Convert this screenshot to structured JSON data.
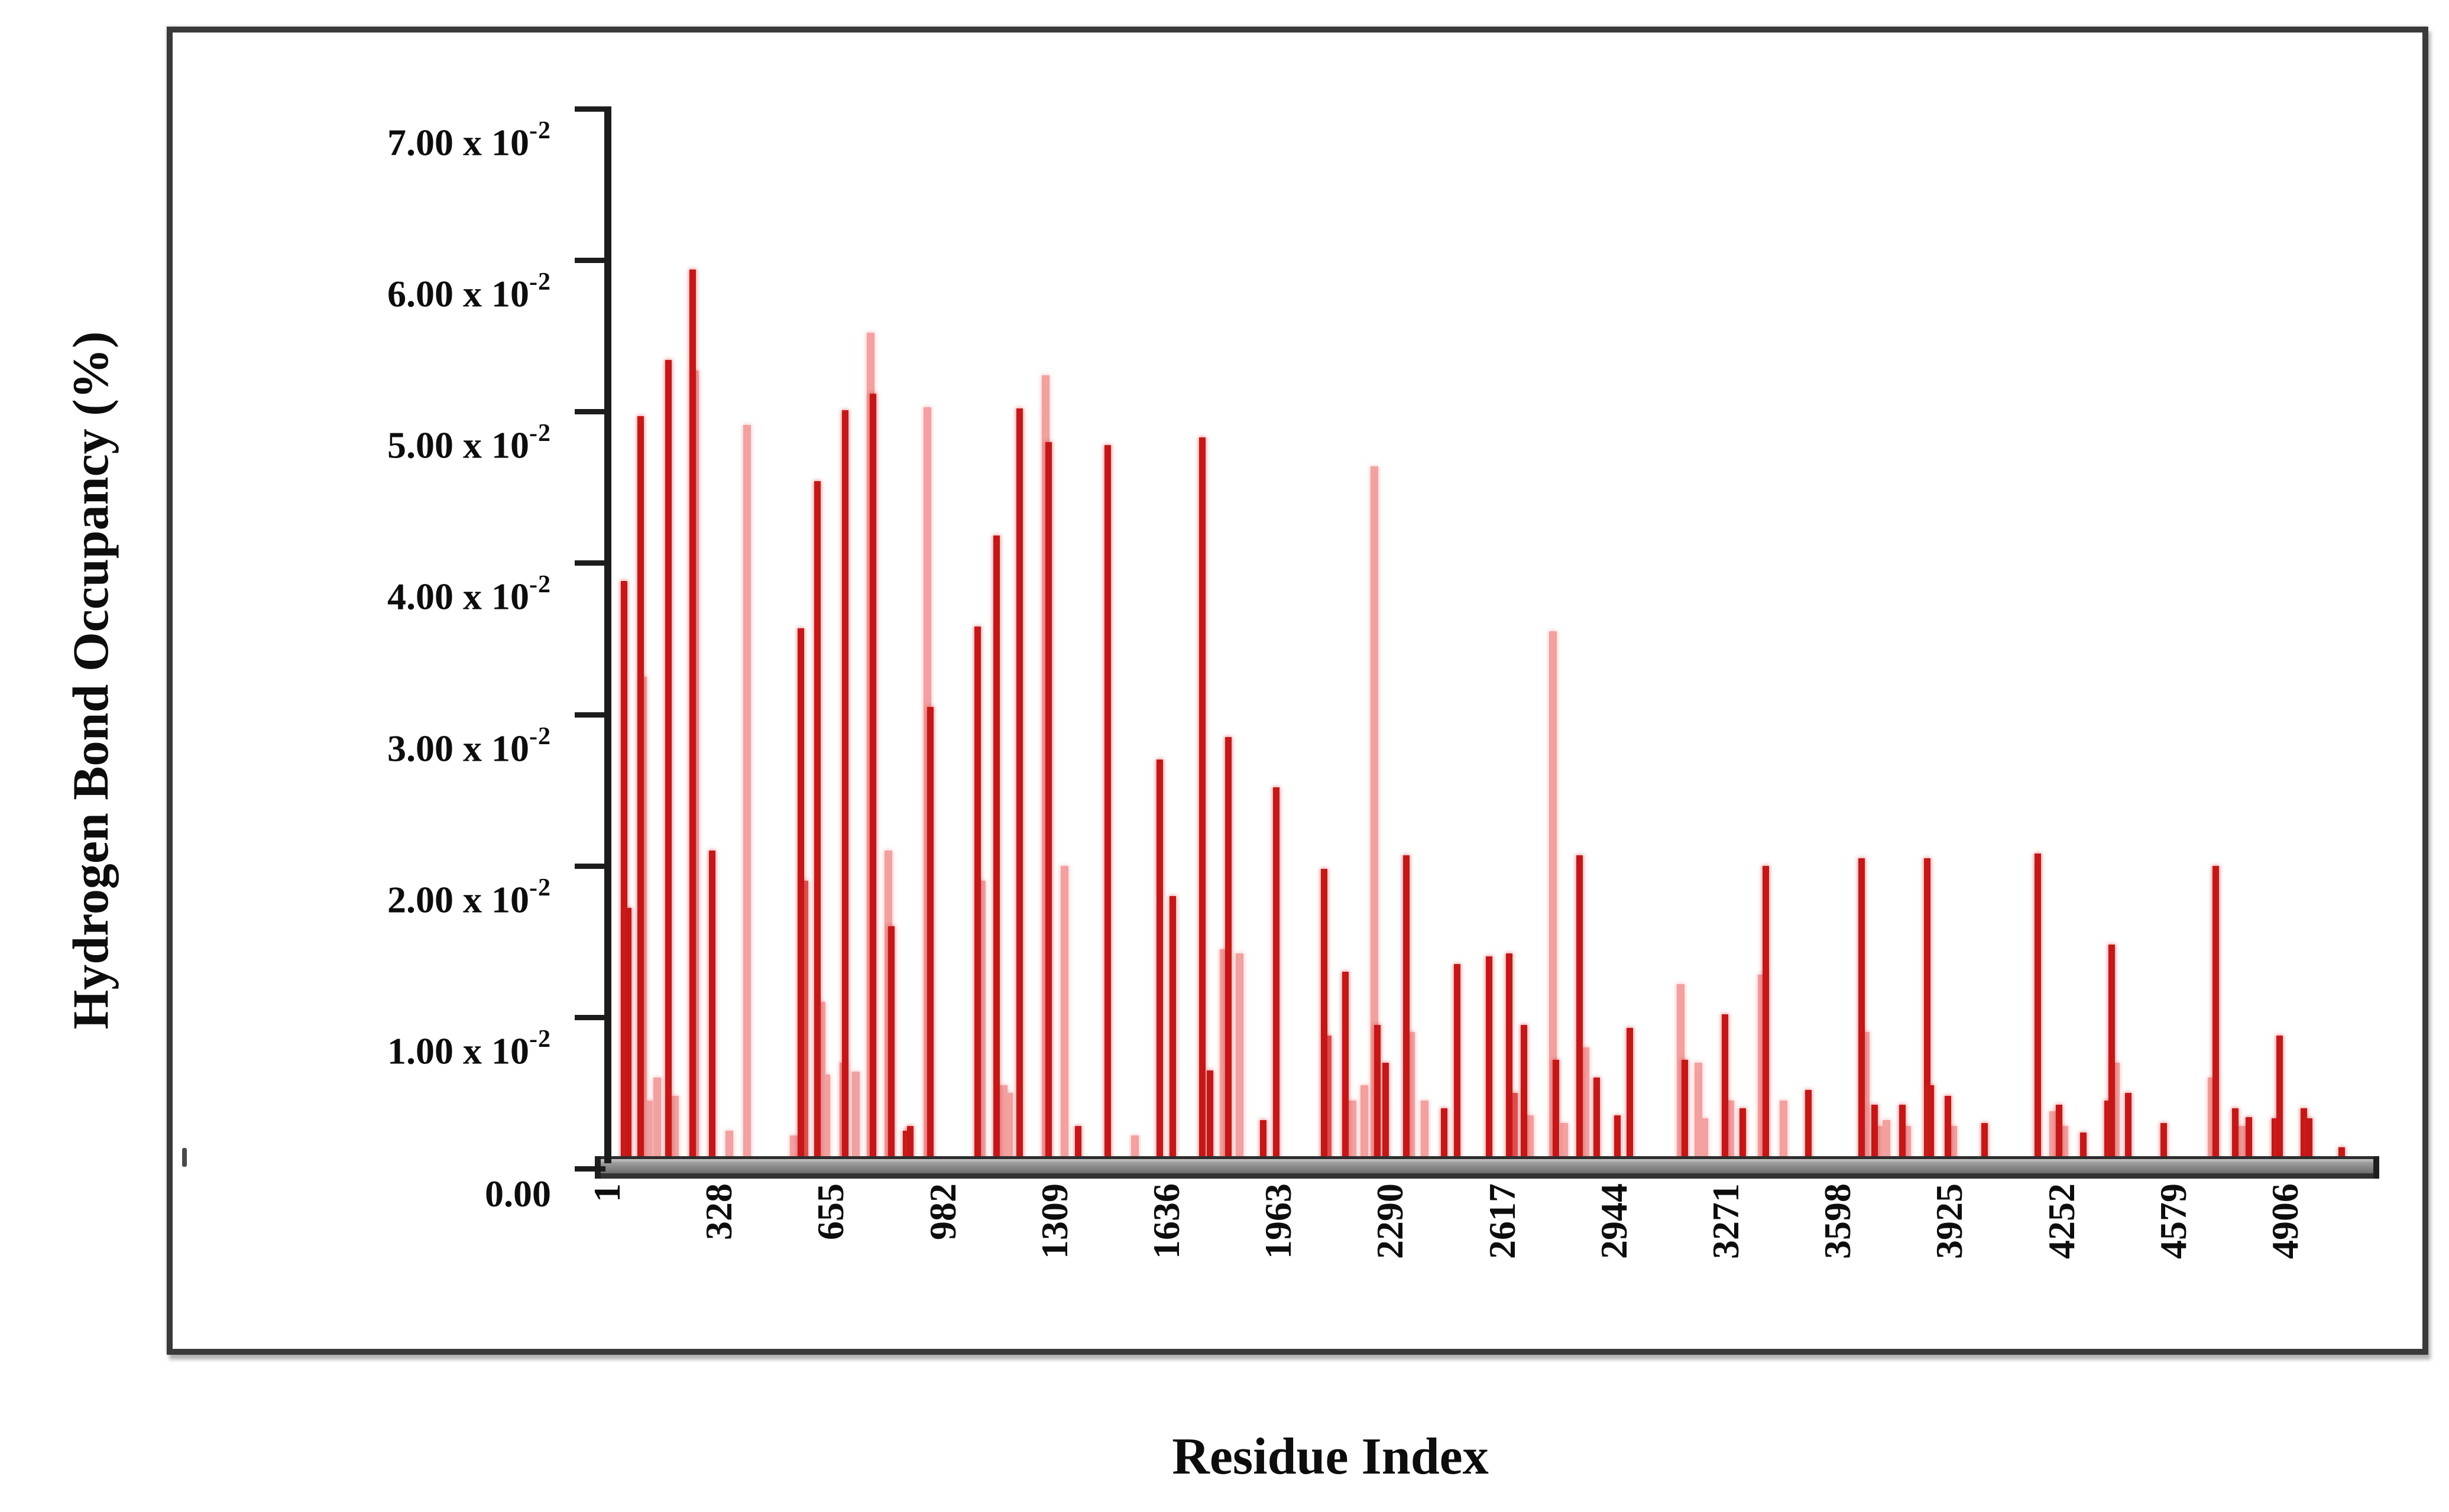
{
  "figure": {
    "background": "#ffffff",
    "frame_color": "#3a3a3a"
  },
  "y_axis": {
    "title": "Hydrogen Bond Occupancy (%)",
    "tick_labels": [
      "7.00 x 10^-2",
      "6.00 x 10^-2",
      "5.00 x 10^-2",
      "4.00 x 10^-2",
      "3.00 x 10^-2",
      "2.00 x 10^-2",
      "1.00 x 10^-2",
      "0.00"
    ]
  },
  "x_axis": {
    "title": "Residue Index",
    "tick_labels": [
      "1",
      "328",
      "655",
      "982",
      "1309",
      "1636",
      "1963",
      "2290",
      "2617",
      "2944",
      "3271",
      "3598",
      "3925",
      "4252",
      "4579",
      "4906"
    ],
    "tick_residues": [
      1,
      328,
      655,
      982,
      1309,
      1636,
      1963,
      2290,
      2617,
      2944,
      3271,
      3598,
      3925,
      4252,
      4579,
      4906
    ]
  },
  "colors": {
    "bar_dark": "#c51717",
    "bar_medium": "#e05252",
    "bar_light": "#f2a0a0",
    "axis": "#1c1c1c",
    "pedestal_gray": "#878787"
  },
  "chart_data": {
    "type": "bar",
    "title": "",
    "xlabel": "Residue Index",
    "ylabel": "Hydrogen Bond Occupancy (%)",
    "xlim": [
      1,
      5180
    ],
    "x_ticks": [
      1,
      328,
      655,
      982,
      1309,
      1636,
      1963,
      2290,
      2617,
      2944,
      3271,
      3598,
      3925,
      4252,
      4579,
      4906
    ],
    "ylim": [
      0,
      0.07
    ],
    "y_ticks": [
      0.0,
      0.01,
      0.02,
      0.03,
      0.04,
      0.05,
      0.06,
      0.07
    ],
    "grid": false,
    "legend_position": null,
    "note": "point format: [residue_index, occupancy_value_in_units_of_1e-2_percent, shade d=dark m=medium l=light]",
    "series": [
      {
        "name": "Hydrogen bond occupancy",
        "points": [
          [
            52,
            3.88,
            "d"
          ],
          [
            64,
            1.72,
            "d"
          ],
          [
            100,
            4.97,
            "d"
          ],
          [
            108,
            3.25,
            "l"
          ],
          [
            125,
            0.45,
            "l"
          ],
          [
            148,
            0.6,
            "l"
          ],
          [
            182,
            5.34,
            "d"
          ],
          [
            200,
            0.48,
            "l"
          ],
          [
            252,
            5.94,
            "d"
          ],
          [
            260,
            5.27,
            "l"
          ],
          [
            310,
            2.1,
            "d"
          ],
          [
            360,
            0.25,
            "l"
          ],
          [
            412,
            4.91,
            "l"
          ],
          [
            548,
            0.22,
            "l"
          ],
          [
            569,
            3.57,
            "d"
          ],
          [
            581,
            1.9,
            "m"
          ],
          [
            618,
            4.54,
            "d"
          ],
          [
            630,
            1.1,
            "l"
          ],
          [
            643,
            0.62,
            "l"
          ],
          [
            694,
            0.7,
            "l"
          ],
          [
            699,
            5.01,
            "d"
          ],
          [
            730,
            0.64,
            "l"
          ],
          [
            772,
            5.52,
            "l"
          ],
          [
            779,
            5.12,
            "d"
          ],
          [
            825,
            2.1,
            "l"
          ],
          [
            833,
            1.6,
            "d"
          ],
          [
            876,
            0.25,
            "d"
          ],
          [
            889,
            0.28,
            "d"
          ],
          [
            938,
            5.03,
            "l"
          ],
          [
            947,
            3.05,
            "d"
          ],
          [
            1086,
            3.58,
            "d"
          ],
          [
            1097,
            1.9,
            "l"
          ],
          [
            1140,
            4.18,
            "d"
          ],
          [
            1162,
            0.55,
            "l"
          ],
          [
            1177,
            0.5,
            "l"
          ],
          [
            1208,
            5.02,
            "d"
          ],
          [
            1285,
            5.24,
            "l"
          ],
          [
            1293,
            4.8,
            "d"
          ],
          [
            1340,
            2.0,
            "l"
          ],
          [
            1380,
            0.28,
            "d"
          ],
          [
            1465,
            4.78,
            "d"
          ],
          [
            1545,
            0.22,
            "l"
          ],
          [
            1618,
            2.7,
            "d"
          ],
          [
            1655,
            1.8,
            "d"
          ],
          [
            1742,
            4.83,
            "d"
          ],
          [
            1764,
            0.65,
            "d"
          ],
          [
            1805,
            1.45,
            "l"
          ],
          [
            1818,
            2.85,
            "d"
          ],
          [
            1852,
            1.42,
            "l"
          ],
          [
            1920,
            0.32,
            "d"
          ],
          [
            1958,
            2.52,
            "d"
          ],
          [
            2098,
            1.98,
            "d"
          ],
          [
            2110,
            0.88,
            "m"
          ],
          [
            2160,
            1.3,
            "d"
          ],
          [
            2182,
            0.45,
            "l"
          ],
          [
            2215,
            0.55,
            "l"
          ],
          [
            2245,
            4.64,
            "l"
          ],
          [
            2254,
            0.95,
            "d"
          ],
          [
            2278,
            0.7,
            "d"
          ],
          [
            2338,
            2.07,
            "d"
          ],
          [
            2352,
            0.9,
            "l"
          ],
          [
            2392,
            0.45,
            "l"
          ],
          [
            2450,
            0.4,
            "d"
          ],
          [
            2487,
            1.35,
            "d"
          ],
          [
            2580,
            1.4,
            "d"
          ],
          [
            2640,
            1.42,
            "d"
          ],
          [
            2654,
            0.5,
            "m"
          ],
          [
            2683,
            0.95,
            "d"
          ],
          [
            2700,
            0.35,
            "l"
          ],
          [
            2768,
            3.55,
            "l"
          ],
          [
            2776,
            0.72,
            "d"
          ],
          [
            2800,
            0.3,
            "l"
          ],
          [
            2845,
            2.07,
            "d"
          ],
          [
            2862,
            0.8,
            "l"
          ],
          [
            2895,
            0.6,
            "d"
          ],
          [
            2955,
            0.35,
            "d"
          ],
          [
            2992,
            0.93,
            "d"
          ],
          [
            3140,
            1.22,
            "l"
          ],
          [
            3152,
            0.72,
            "d"
          ],
          [
            3192,
            0.7,
            "l"
          ],
          [
            3210,
            0.33,
            "l"
          ],
          [
            3270,
            1.02,
            "d"
          ],
          [
            3285,
            0.45,
            "l"
          ],
          [
            3322,
            0.4,
            "d"
          ],
          [
            3378,
            1.28,
            "l"
          ],
          [
            3390,
            2.0,
            "d"
          ],
          [
            3442,
            0.45,
            "l"
          ],
          [
            3513,
            0.52,
            "d"
          ],
          [
            3670,
            2.05,
            "d"
          ],
          [
            3682,
            0.9,
            "l"
          ],
          [
            3707,
            0.42,
            "d"
          ],
          [
            3722,
            0.28,
            "l"
          ],
          [
            3742,
            0.32,
            "l"
          ],
          [
            3788,
            0.42,
            "d"
          ],
          [
            3802,
            0.28,
            "l"
          ],
          [
            3861,
            2.05,
            "d"
          ],
          [
            3872,
            0.55,
            "d"
          ],
          [
            3922,
            0.48,
            "d"
          ],
          [
            3938,
            0.28,
            "l"
          ],
          [
            4028,
            0.3,
            "d"
          ],
          [
            4185,
            2.08,
            "d"
          ],
          [
            4230,
            0.38,
            "l"
          ],
          [
            4247,
            0.42,
            "d"
          ],
          [
            4262,
            0.28,
            "l"
          ],
          [
            4317,
            0.24,
            "d"
          ],
          [
            4388,
            0.45,
            "d"
          ],
          [
            4400,
            1.48,
            "d"
          ],
          [
            4412,
            0.7,
            "l"
          ],
          [
            4448,
            0.5,
            "d"
          ],
          [
            4552,
            0.3,
            "d"
          ],
          [
            4692,
            0.6,
            "l"
          ],
          [
            4705,
            2.0,
            "d"
          ],
          [
            4762,
            0.4,
            "d"
          ],
          [
            4782,
            0.28,
            "l"
          ],
          [
            4802,
            0.34,
            "d"
          ],
          [
            4878,
            0.33,
            "d"
          ],
          [
            4892,
            0.88,
            "d"
          ],
          [
            4962,
            0.4,
            "d"
          ],
          [
            4978,
            0.33,
            "d"
          ],
          [
            5072,
            0.14,
            "d"
          ]
        ]
      }
    ]
  }
}
